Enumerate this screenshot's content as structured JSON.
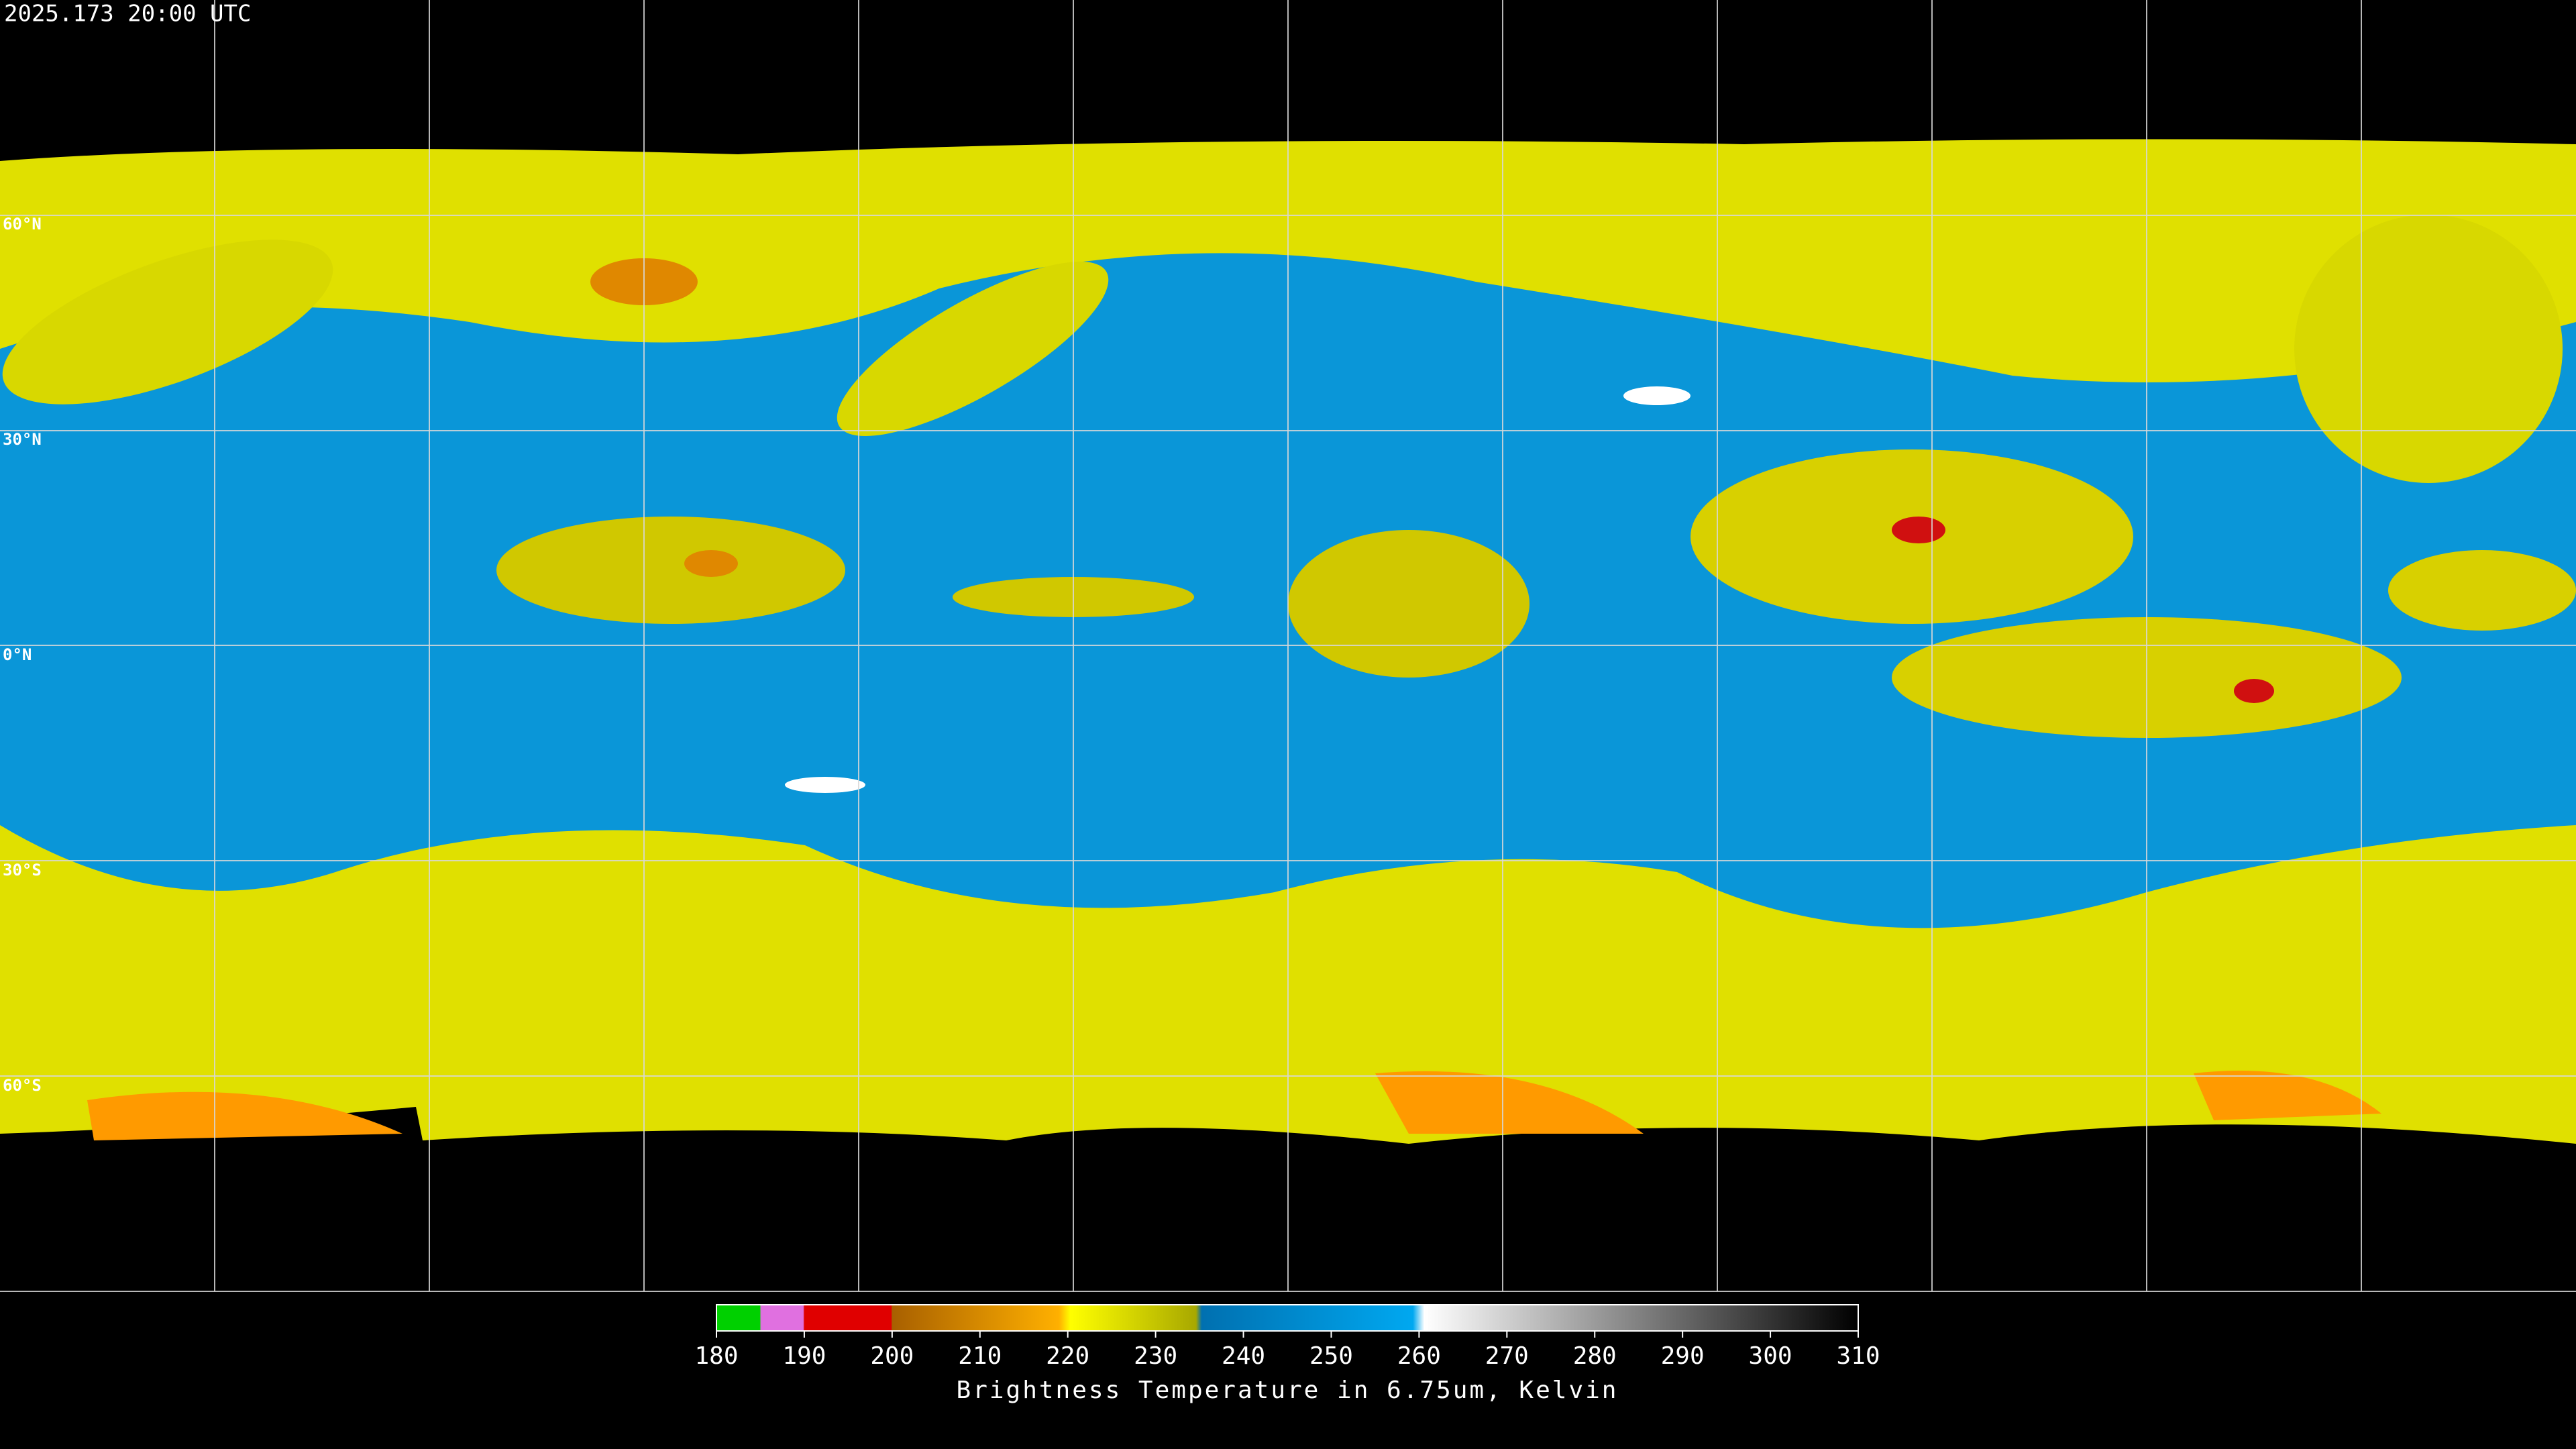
{
  "header": {
    "timestamp": "2025.173 20:00 UTC"
  },
  "map": {
    "latitude_labels": [
      "60°N",
      "30°N",
      "0°N",
      "30°S",
      "60°S"
    ]
  },
  "colorbar": {
    "ticks": [
      180,
      190,
      200,
      210,
      220,
      230,
      240,
      250,
      260,
      270,
      280,
      290,
      300,
      310
    ],
    "caption": "Brightness Temperature in 6.75um, Kelvin"
  }
}
